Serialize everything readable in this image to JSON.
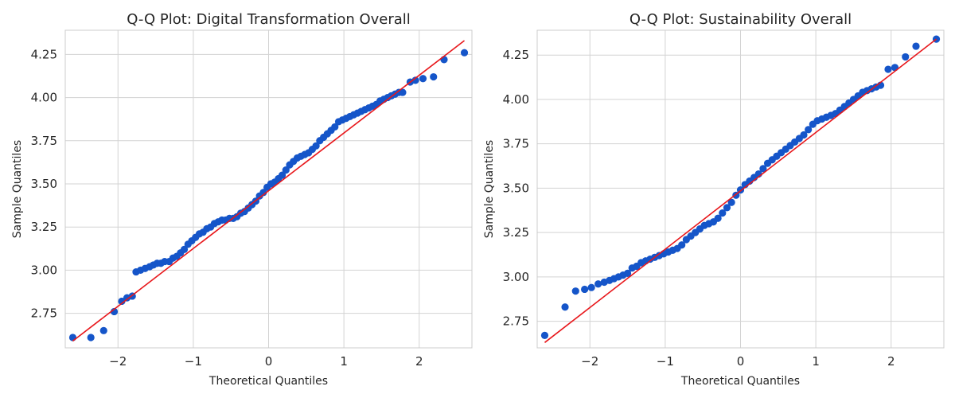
{
  "chart_data": [
    {
      "type": "scatter",
      "title": "Q-Q Plot: Digital Transformation Overall",
      "xlabel": "Theoretical Quantiles",
      "ylabel": "Sample Quantiles",
      "xlim": [
        -2.7,
        2.7
      ],
      "ylim": [
        2.55,
        4.39
      ],
      "xticks": [
        -2,
        -1,
        0,
        1,
        2
      ],
      "xtick_labels": [
        "−2",
        "−1",
        "0",
        "1",
        "2"
      ],
      "yticks": [
        2.75,
        3.0,
        3.25,
        3.5,
        3.75,
        4.0,
        4.25
      ],
      "ytick_labels": [
        "2.75",
        "3.00",
        "3.25",
        "3.50",
        "3.75",
        "4.00",
        "4.25"
      ],
      "grid": true,
      "marker_color": "#1555c9",
      "line_color": "#e8171b",
      "reference_line": {
        "x": [
          -2.6,
          2.6
        ],
        "y": [
          2.59,
          4.33
        ]
      },
      "series": [
        {
          "x": [
            -2.6,
            -2.36,
            -2.19,
            -2.05,
            -1.95,
            -1.88,
            -1.81,
            -1.76,
            -1.7,
            -1.64,
            -1.58,
            -1.53,
            -1.48,
            -1.43,
            -1.38,
            -1.32,
            -1.27,
            -1.22,
            -1.17,
            -1.12,
            -1.07,
            -1.02,
            -0.97,
            -0.92,
            -0.87,
            -0.82,
            -0.77,
            -0.72,
            -0.67,
            -0.62,
            -0.57,
            -0.52,
            -0.47,
            -0.42,
            -0.37,
            -0.32,
            -0.27,
            -0.22,
            -0.17,
            -0.12,
            -0.07,
            -0.02,
            0.03,
            0.08,
            0.13,
            0.18,
            0.23,
            0.28,
            0.33,
            0.38,
            0.43,
            0.48,
            0.53,
            0.58,
            0.63,
            0.68,
            0.73,
            0.78,
            0.83,
            0.88,
            0.93,
            0.98,
            1.03,
            1.08,
            1.13,
            1.18,
            1.23,
            1.28,
            1.33,
            1.38,
            1.43,
            1.48,
            1.53,
            1.58,
            1.63,
            1.68,
            1.73,
            1.78,
            1.88,
            1.95,
            2.05,
            2.19,
            2.33,
            2.6
          ],
          "y": [
            2.61,
            2.61,
            2.65,
            2.76,
            2.82,
            2.84,
            2.85,
            2.99,
            3.0,
            3.01,
            3.02,
            3.03,
            3.04,
            3.04,
            3.05,
            3.05,
            3.07,
            3.08,
            3.1,
            3.12,
            3.15,
            3.17,
            3.19,
            3.21,
            3.22,
            3.24,
            3.25,
            3.27,
            3.28,
            3.29,
            3.29,
            3.3,
            3.3,
            3.31,
            3.33,
            3.34,
            3.36,
            3.38,
            3.4,
            3.43,
            3.45,
            3.48,
            3.5,
            3.51,
            3.53,
            3.55,
            3.58,
            3.61,
            3.63,
            3.65,
            3.66,
            3.67,
            3.68,
            3.7,
            3.72,
            3.75,
            3.77,
            3.79,
            3.81,
            3.83,
            3.86,
            3.87,
            3.88,
            3.89,
            3.9,
            3.91,
            3.92,
            3.93,
            3.94,
            3.95,
            3.96,
            3.98,
            3.99,
            4.0,
            4.01,
            4.02,
            4.03,
            4.03,
            4.09,
            4.1,
            4.11,
            4.12,
            4.22,
            4.26
          ]
        }
      ]
    },
    {
      "type": "scatter",
      "title": "Q-Q Plot: Sustainability Overall",
      "xlabel": "Theoretical Quantiles",
      "ylabel": "Sample Quantiles",
      "xlim": [
        -2.7,
        2.7
      ],
      "ylim": [
        2.6,
        4.39
      ],
      "xticks": [
        -2,
        -1,
        0,
        1,
        2
      ],
      "xtick_labels": [
        "−2",
        "−1",
        "0",
        "1",
        "2"
      ],
      "yticks": [
        2.75,
        3.0,
        3.25,
        3.5,
        3.75,
        4.0,
        4.25
      ],
      "ytick_labels": [
        "2.75",
        "3.00",
        "3.25",
        "3.50",
        "3.75",
        "4.00",
        "4.25"
      ],
      "grid": true,
      "marker_color": "#1555c9",
      "line_color": "#e8171b",
      "reference_line": {
        "x": [
          -2.6,
          2.6
        ],
        "y": [
          2.63,
          4.34
        ]
      },
      "series": [
        {
          "x": [
            -2.6,
            -2.33,
            -2.19,
            -2.07,
            -1.98,
            -1.89,
            -1.81,
            -1.74,
            -1.68,
            -1.62,
            -1.56,
            -1.5,
            -1.44,
            -1.38,
            -1.32,
            -1.26,
            -1.2,
            -1.14,
            -1.08,
            -1.02,
            -0.96,
            -0.9,
            -0.84,
            -0.78,
            -0.72,
            -0.66,
            -0.6,
            -0.54,
            -0.48,
            -0.42,
            -0.36,
            -0.3,
            -0.24,
            -0.18,
            -0.12,
            -0.06,
            0.0,
            0.06,
            0.12,
            0.18,
            0.24,
            0.3,
            0.36,
            0.42,
            0.48,
            0.54,
            0.6,
            0.66,
            0.72,
            0.78,
            0.84,
            0.9,
            0.96,
            1.02,
            1.08,
            1.14,
            1.2,
            1.26,
            1.32,
            1.38,
            1.44,
            1.5,
            1.56,
            1.62,
            1.68,
            1.74,
            1.8,
            1.86,
            1.96,
            2.05,
            2.19,
            2.33,
            2.6
          ],
          "y": [
            2.67,
            2.83,
            2.92,
            2.93,
            2.94,
            2.96,
            2.97,
            2.98,
            2.99,
            3.0,
            3.01,
            3.02,
            3.05,
            3.06,
            3.08,
            3.09,
            3.1,
            3.11,
            3.12,
            3.13,
            3.14,
            3.15,
            3.16,
            3.18,
            3.21,
            3.23,
            3.25,
            3.27,
            3.29,
            3.3,
            3.31,
            3.33,
            3.36,
            3.39,
            3.42,
            3.46,
            3.49,
            3.52,
            3.54,
            3.56,
            3.58,
            3.61,
            3.64,
            3.66,
            3.68,
            3.7,
            3.72,
            3.74,
            3.76,
            3.78,
            3.8,
            3.83,
            3.86,
            3.88,
            3.89,
            3.9,
            3.91,
            3.92,
            3.94,
            3.96,
            3.98,
            4.0,
            4.02,
            4.04,
            4.05,
            4.06,
            4.07,
            4.08,
            4.17,
            4.18,
            4.24,
            4.3,
            4.34
          ]
        }
      ]
    }
  ]
}
